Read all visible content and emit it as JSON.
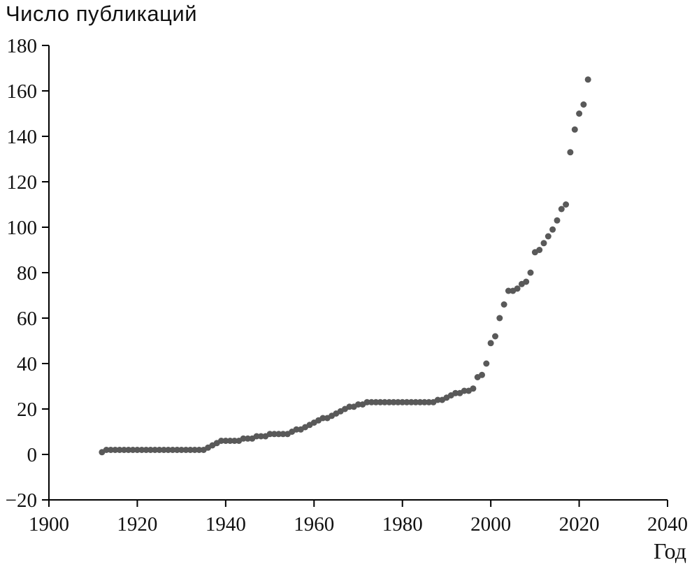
{
  "chart_data": {
    "type": "scatter",
    "title": "Число публикаций",
    "xlabel": "Год",
    "ylabel": "Число публикаций",
    "xlim": [
      1900,
      2040
    ],
    "ylim": [
      -20,
      180
    ],
    "xticks": [
      1900,
      1920,
      1940,
      1960,
      1980,
      2000,
      2020,
      2040
    ],
    "xtick_labels": [
      "1900",
      "1920",
      "1940",
      "1960",
      "1980",
      "2000",
      "2020",
      "2040"
    ],
    "yticks": [
      -20,
      0,
      20,
      40,
      60,
      80,
      100,
      120,
      140,
      160,
      180
    ],
    "ytick_labels": [
      "−20",
      "0",
      "20",
      "40",
      "60",
      "80",
      "100",
      "120",
      "140",
      "160",
      "180"
    ],
    "grid": false,
    "legend": false,
    "marker_color": "#595959",
    "axis_color": "#000000",
    "x": [
      1912,
      1913,
      1914,
      1915,
      1916,
      1917,
      1918,
      1919,
      1920,
      1921,
      1922,
      1923,
      1924,
      1925,
      1926,
      1927,
      1928,
      1929,
      1930,
      1931,
      1932,
      1933,
      1934,
      1935,
      1936,
      1937,
      1938,
      1939,
      1940,
      1941,
      1942,
      1943,
      1944,
      1945,
      1946,
      1947,
      1948,
      1949,
      1950,
      1951,
      1952,
      1953,
      1954,
      1955,
      1956,
      1957,
      1958,
      1959,
      1960,
      1961,
      1962,
      1963,
      1964,
      1965,
      1966,
      1967,
      1968,
      1969,
      1970,
      1971,
      1972,
      1973,
      1974,
      1975,
      1976,
      1977,
      1978,
      1979,
      1980,
      1981,
      1982,
      1983,
      1984,
      1985,
      1986,
      1987,
      1988,
      1989,
      1990,
      1991,
      1992,
      1993,
      1994,
      1995,
      1996,
      1997,
      1998,
      1999,
      2000,
      2001,
      2002,
      2003,
      2004,
      2005,
      2006,
      2007,
      2008,
      2009,
      2010,
      2011,
      2012,
      2013,
      2014,
      2015,
      2016,
      2017,
      2018,
      2019,
      2020,
      2021,
      2022
    ],
    "y": [
      1,
      2,
      2,
      2,
      2,
      2,
      2,
      2,
      2,
      2,
      2,
      2,
      2,
      2,
      2,
      2,
      2,
      2,
      2,
      2,
      2,
      2,
      2,
      2,
      3,
      4,
      5,
      6,
      6,
      6,
      6,
      6,
      7,
      7,
      7,
      8,
      8,
      8,
      9,
      9,
      9,
      9,
      9,
      10,
      11,
      11,
      12,
      13,
      14,
      15,
      16,
      16,
      17,
      18,
      19,
      20,
      21,
      21,
      22,
      22,
      23,
      23,
      23,
      23,
      23,
      23,
      23,
      23,
      23,
      23,
      23,
      23,
      23,
      23,
      23,
      23,
      24,
      24,
      25,
      26,
      27,
      27,
      28,
      28,
      29,
      34,
      35,
      40,
      49,
      52,
      60,
      66,
      72,
      72,
      73,
      75,
      76,
      80,
      89,
      90,
      93,
      96,
      99,
      103,
      108,
      110,
      133,
      143,
      150,
      154,
      165
    ]
  }
}
